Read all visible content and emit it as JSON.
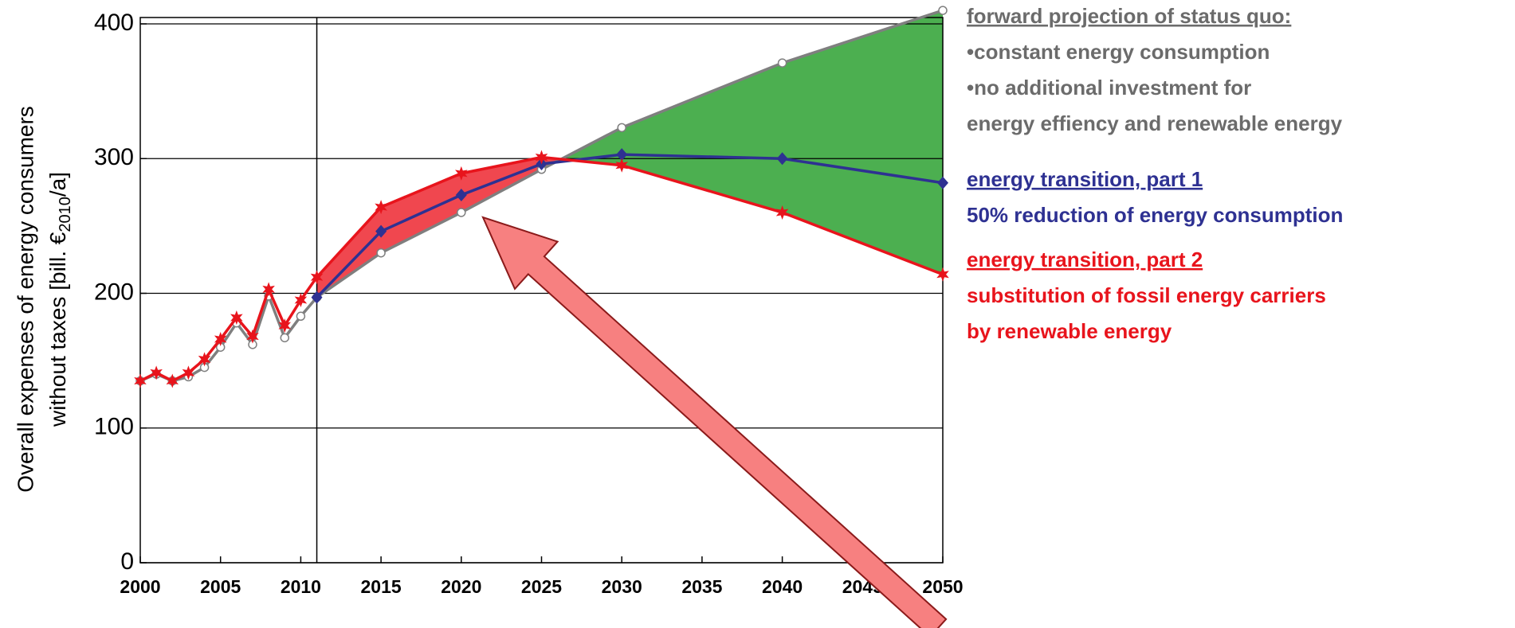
{
  "chart_data": {
    "type": "line",
    "ylabel": [
      "Overall expenses of energy consumers",
      [
        "without taxes [bill. €",
        "2010",
        "/a]"
      ]
    ],
    "xlim": [
      2000,
      2050
    ],
    "ylim": [
      0,
      400
    ],
    "xticks": [
      2000,
      2005,
      2010,
      2015,
      2020,
      2025,
      2030,
      2035,
      2040,
      2045,
      2050
    ],
    "yticks": [
      0,
      100,
      200,
      300,
      400
    ],
    "reference_x": 2011,
    "grid": true,
    "series": [
      {
        "name": [
          "forward projection of status quo:",
          "•constant energy consumption",
          "•no additional investment for",
          " energy effiency and renewable energy"
        ],
        "color": "#7f7f7f",
        "marker": "circle",
        "x": [
          2000,
          2001,
          2002,
          2003,
          2004,
          2005,
          2006,
          2007,
          2008,
          2009,
          2010,
          2011,
          2015,
          2020,
          2025,
          2030,
          2040,
          2050
        ],
        "values": [
          135,
          140,
          135,
          138,
          145,
          160,
          178,
          162,
          198,
          167,
          183,
          197,
          230,
          260,
          292,
          323,
          371,
          410
        ]
      },
      {
        "name": [
          "energy transition, part 1",
          "50% reduction of energy consumption"
        ],
        "color": "#2e3192",
        "marker": "diamond",
        "x": [
          2011,
          2015,
          2020,
          2025,
          2030,
          2040,
          2050
        ],
        "values": [
          197,
          246,
          273,
          296,
          303,
          300,
          282
        ]
      },
      {
        "name": [
          "energy transition, part 2",
          "substitution of fossil energy carriers",
          "by renewable energy"
        ],
        "color": "#e8141c",
        "marker": "star",
        "x": [
          2000,
          2001,
          2002,
          2003,
          2004,
          2005,
          2006,
          2007,
          2008,
          2009,
          2010,
          2011,
          2015,
          2020,
          2025,
          2030,
          2040,
          2050
        ],
        "values": [
          135,
          141,
          135,
          141,
          151,
          166,
          182,
          168,
          203,
          176,
          195,
          212,
          264,
          289,
          301,
          295,
          260,
          214
        ]
      }
    ],
    "fill_colors": [
      "#f0474f",
      "#4caf50"
    ]
  }
}
